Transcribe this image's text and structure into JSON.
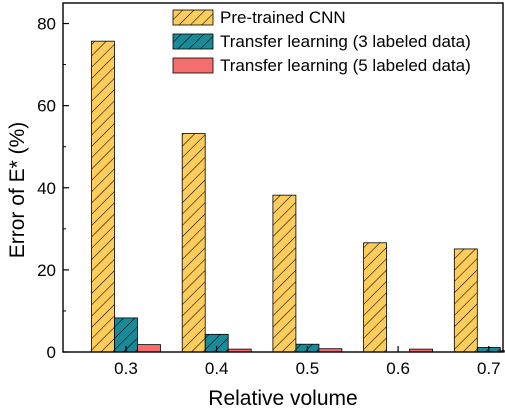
{
  "chart_data": {
    "type": "bar",
    "title": "",
    "xlabel": "Relative volume",
    "ylabel": "Error of E* (%)",
    "categories": [
      "0.3",
      "0.4",
      "0.5",
      "0.6",
      "0.7"
    ],
    "ylim": [
      0,
      85
    ],
    "yticks": [
      "0",
      "20",
      "40",
      "60",
      "80"
    ],
    "grid": false,
    "legend_position": "top-right",
    "series": [
      {
        "name": "Pre-trained CNN",
        "values": [
          75.7,
          53.2,
          38.2,
          26.6,
          25.1
        ],
        "color": "#fccc5c",
        "pattern": "hatch"
      },
      {
        "name": "Transfer learning (3 labeled data)",
        "values": [
          8.3,
          4.3,
          1.9,
          0.0,
          1.1
        ],
        "color": "#1a8a98",
        "pattern": "hatch"
      },
      {
        "name": "Transfer learning (5 labeled data)",
        "values": [
          1.8,
          0.7,
          0.8,
          0.7,
          0.3
        ],
        "color": "#f56e6e",
        "pattern": "solid"
      }
    ]
  }
}
